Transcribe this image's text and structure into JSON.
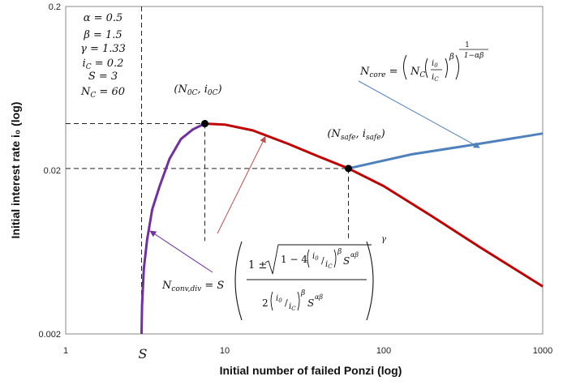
{
  "chart_data": {
    "type": "line",
    "xlabel": "Initial number of failed Ponzi (log)",
    "ylabel": "Initial interest rate i₀ (log)",
    "x_scale": "log",
    "y_scale": "log",
    "xlim": [
      1,
      1000
    ],
    "ylim": [
      0.002,
      0.2
    ],
    "x_ticks": [
      {
        "value": 1,
        "label": "1"
      },
      {
        "value": 10,
        "label": "10"
      },
      {
        "value": 100,
        "label": "100"
      },
      {
        "value": 1000,
        "label": "1000"
      }
    ],
    "y_ticks": [
      {
        "value": 0.002,
        "label": "0.002"
      },
      {
        "value": 0.02,
        "label": "0.02"
      },
      {
        "value": 0.2,
        "label": "0.2"
      }
    ],
    "s_tick_label": "S",
    "parameters": [
      "α = 0.5",
      "β = 1.5",
      "γ = 1.33",
      "i_C = 0.2",
      "S = 3",
      "N_C = 60"
    ],
    "series": [
      {
        "name": "N_conv,div (lower branch)",
        "color": "#7030A0",
        "points": [
          [
            3.0,
            0.002
          ],
          [
            3.02,
            0.003
          ],
          [
            3.1,
            0.005
          ],
          [
            3.25,
            0.0075
          ],
          [
            3.5,
            0.0115
          ],
          [
            3.9,
            0.016
          ],
          [
            4.5,
            0.0235
          ],
          [
            5.3,
            0.031
          ],
          [
            6.3,
            0.0355
          ],
          [
            7.5,
            0.0385
          ]
        ]
      },
      {
        "name": "N_conv,div (upper branch)",
        "color": "#C00000",
        "points": [
          [
            7.5,
            0.0385
          ],
          [
            10,
            0.038
          ],
          [
            15,
            0.035
          ],
          [
            25,
            0.029
          ],
          [
            40,
            0.024
          ],
          [
            60,
            0.0205
          ],
          [
            100,
            0.016
          ],
          [
            200,
            0.0105
          ],
          [
            400,
            0.0068
          ],
          [
            1000,
            0.0039
          ]
        ]
      },
      {
        "name": "N_core",
        "color": "#4F81BD",
        "points": [
          [
            60,
            0.0205
          ],
          [
            150,
            0.025
          ],
          [
            400,
            0.029
          ],
          [
            1000,
            0.0335
          ]
        ]
      }
    ],
    "markers": [
      {
        "x": 7.5,
        "y": 0.0385,
        "label": "(N0C, i0C)"
      },
      {
        "x": 60,
        "y": 0.0205,
        "label": "(Nsafe, isafe)"
      }
    ],
    "reference_lines": [
      {
        "orientation": "vertical",
        "x": 3
      },
      {
        "orientation": "vertical",
        "x": 7.5
      },
      {
        "orientation": "vertical",
        "x": 60
      },
      {
        "orientation": "horizontal",
        "y": 0.0385
      },
      {
        "orientation": "horizontal",
        "y": 0.0205
      }
    ],
    "annotations": [
      {
        "name": "N_core formula",
        "arrow_color": "#4F81BD",
        "arrow_to": [
          400,
          0.0275
        ]
      },
      {
        "name": "N_conv,div formula (red arrow)",
        "arrow_color": "#C00000",
        "arrow_to": [
          18,
          0.032
        ]
      },
      {
        "name": "N_conv,div formula (purple arrow)",
        "arrow_color": "#7030A0",
        "arrow_to": [
          3.4,
          0.0085
        ]
      }
    ],
    "grid": false,
    "legend": "none"
  }
}
